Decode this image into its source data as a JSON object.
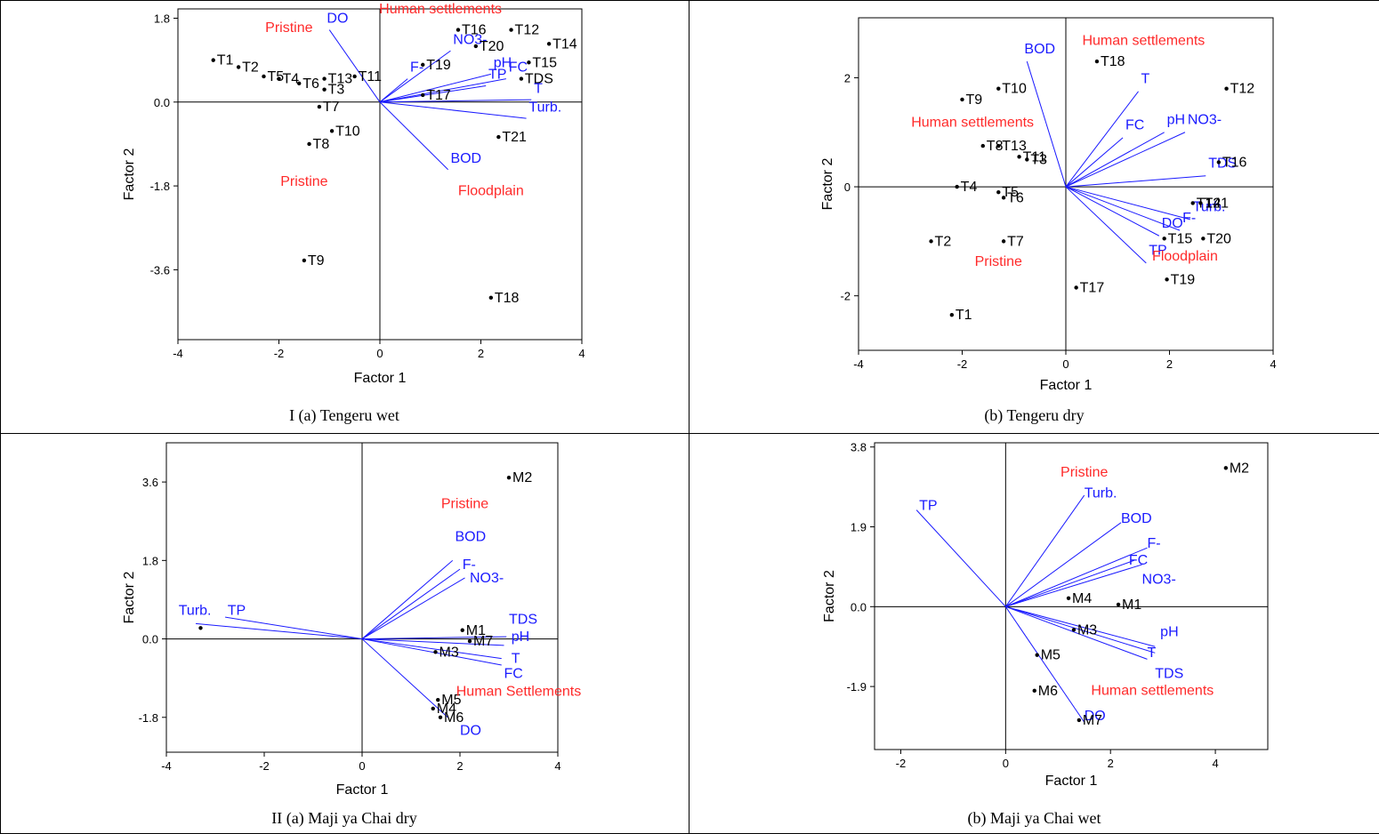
{
  "figure": {
    "captions": [
      "I (a) Tengeru wet",
      "(b) Tengeru dry",
      "II (a) Maji ya Chai dry",
      "(b) Maji ya Chai wet"
    ]
  },
  "colors": {
    "axis": "#000000",
    "vector": "#1a1aff",
    "vector_label": "#1a1aff",
    "group_label": "#ff2a2a",
    "point": "#000000"
  },
  "chart_data": [
    {
      "type": "scatter",
      "title": "",
      "caption": "I (a) Tengeru wet",
      "xlabel": "Factor 1",
      "ylabel": "Factor 2",
      "xlim": [
        -4,
        4
      ],
      "ylim": [
        -5.1,
        2.0
      ],
      "xticks": [
        -4,
        -2,
        0,
        2,
        4
      ],
      "yticks": [
        1.8,
        0.0,
        -1.8,
        -3.6
      ],
      "ytick_labels": [
        "1.8",
        "0.0",
        "-1.8",
        "-3.6"
      ],
      "points": [
        {
          "label": "T1",
          "x": -3.3,
          "y": 0.9
        },
        {
          "label": "T2",
          "x": -2.8,
          "y": 0.75
        },
        {
          "label": "T5",
          "x": -2.3,
          "y": 0.55
        },
        {
          "label": "T4",
          "x": -2.0,
          "y": 0.5
        },
        {
          "label": "T6",
          "x": -1.6,
          "y": 0.4
        },
        {
          "label": "T13",
          "x": -1.1,
          "y": 0.5
        },
        {
          "label": "T3",
          "x": -1.1,
          "y": 0.27
        },
        {
          "label": "T11",
          "x": -0.5,
          "y": 0.55
        },
        {
          "label": "T7",
          "x": -1.2,
          "y": -0.1
        },
        {
          "label": "T10",
          "x": -0.95,
          "y": -0.62
        },
        {
          "label": "T8",
          "x": -1.4,
          "y": -0.9
        },
        {
          "label": "T9",
          "x": -1.5,
          "y": -3.4
        },
        {
          "label": "T16",
          "x": 1.55,
          "y": 1.55
        },
        {
          "label": "T12",
          "x": 2.6,
          "y": 1.55
        },
        {
          "label": "T14",
          "x": 3.35,
          "y": 1.25
        },
        {
          "label": "T20",
          "x": 1.9,
          "y": 1.2
        },
        {
          "label": "T19",
          "x": 0.85,
          "y": 0.8
        },
        {
          "label": "T15",
          "x": 2.95,
          "y": 0.85
        },
        {
          "label": "T17",
          "x": 0.85,
          "y": 0.15
        },
        {
          "label": "TDS",
          "x": 2.8,
          "y": 0.5
        },
        {
          "label": "T21",
          "x": 2.35,
          "y": -0.75
        },
        {
          "label": "T18",
          "x": 2.2,
          "y": -4.2
        }
      ],
      "vectors": [
        {
          "label": "DO",
          "x": -1.0,
          "y": 1.55
        },
        {
          "label": "NO3-",
          "x": 1.4,
          "y": 1.1
        },
        {
          "label": "F-",
          "x": 0.55,
          "y": 0.5
        },
        {
          "label": "pH",
          "x": 2.2,
          "y": 0.6
        },
        {
          "label": "TP",
          "x": 2.1,
          "y": 0.35
        },
        {
          "label": "FC",
          "x": 2.5,
          "y": 0.5
        },
        {
          "label": "T",
          "x": 3.0,
          "y": 0.05
        },
        {
          "label": "Turb.",
          "x": 2.9,
          "y": -0.35
        },
        {
          "label": "BOD",
          "x": 1.35,
          "y": -1.45
        }
      ],
      "group_labels": [
        {
          "text": "Pristine",
          "x": -1.8,
          "y": 1.5
        },
        {
          "text": "Human settlements",
          "x": 1.2,
          "y": 1.9
        },
        {
          "text": "Pristine",
          "x": -1.5,
          "y": -1.8
        },
        {
          "text": "Floodplain",
          "x": 2.2,
          "y": -2.0
        }
      ]
    },
    {
      "type": "scatter",
      "title": "",
      "caption": "(b) Tengeru dry",
      "xlabel": "Factor 1",
      "ylabel": "Factor 2",
      "xlim": [
        -4,
        4
      ],
      "ylim": [
        -3.0,
        3.1
      ],
      "xticks": [
        -4,
        -2,
        0,
        2,
        4
      ],
      "yticks": [
        2,
        0,
        -2
      ],
      "ytick_labels": [
        "2",
        "0",
        "-2"
      ],
      "points": [
        {
          "label": "T9",
          "x": -2.0,
          "y": 1.6
        },
        {
          "label": "T10",
          "x": -1.3,
          "y": 1.8
        },
        {
          "label": "T18",
          "x": 0.6,
          "y": 2.3
        },
        {
          "label": "T12",
          "x": 3.1,
          "y": 1.8
        },
        {
          "label": "T8",
          "x": -1.6,
          "y": 0.75
        },
        {
          "label": "T13",
          "x": -1.3,
          "y": 0.75
        },
        {
          "label": "T11",
          "x": -0.9,
          "y": 0.55
        },
        {
          "label": "T3",
          "x": -0.75,
          "y": 0.5
        },
        {
          "label": "T16",
          "x": 2.95,
          "y": 0.45
        },
        {
          "label": "T4",
          "x": -2.1,
          "y": 0.0
        },
        {
          "label": "T5",
          "x": -1.3,
          "y": -0.1
        },
        {
          "label": "T6",
          "x": -1.2,
          "y": -0.2
        },
        {
          "label": "T14",
          "x": 2.45,
          "y": -0.3
        },
        {
          "label": "T21",
          "x": 2.6,
          "y": -0.3
        },
        {
          "label": "T15",
          "x": 1.9,
          "y": -0.95
        },
        {
          "label": "T20",
          "x": 2.65,
          "y": -0.95
        },
        {
          "label": "T2",
          "x": -2.6,
          "y": -1.0
        },
        {
          "label": "T7",
          "x": -1.2,
          "y": -1.0
        },
        {
          "label": "T19",
          "x": 1.95,
          "y": -1.7
        },
        {
          "label": "T17",
          "x": 0.2,
          "y": -1.85
        },
        {
          "label": "T1",
          "x": -2.2,
          "y": -2.35
        }
      ],
      "vectors": [
        {
          "label": "BOD",
          "x": -0.75,
          "y": 2.3
        },
        {
          "label": "T",
          "x": 1.4,
          "y": 1.75
        },
        {
          "label": "FC",
          "x": 1.1,
          "y": 0.9
        },
        {
          "label": "pH",
          "x": 1.9,
          "y": 1.0
        },
        {
          "label": "NO3-",
          "x": 2.3,
          "y": 1.0
        },
        {
          "label": "TDS",
          "x": 2.7,
          "y": 0.2
        },
        {
          "label": "Turb.",
          "x": 2.4,
          "y": -0.6
        },
        {
          "label": "F-",
          "x": 2.2,
          "y": -0.8
        },
        {
          "label": "DO",
          "x": 1.8,
          "y": -0.9
        },
        {
          "label": "TP",
          "x": 1.55,
          "y": -1.4
        }
      ],
      "group_labels": [
        {
          "text": "Human settlements",
          "x": 1.5,
          "y": 2.6
        },
        {
          "text": "Human settlements",
          "x": -1.8,
          "y": 1.1
        },
        {
          "text": "Pristine",
          "x": -1.3,
          "y": -1.45
        },
        {
          "text": "Floodplain",
          "x": 2.3,
          "y": -1.35
        }
      ]
    },
    {
      "type": "scatter",
      "title": "",
      "caption": "II (a) Maji ya Chai dry",
      "xlabel": "Factor 1",
      "ylabel": "Factor 2",
      "xlim": [
        -4,
        4
      ],
      "ylim": [
        -2.6,
        4.5
      ],
      "xticks": [
        -4,
        -2,
        0,
        2,
        4
      ],
      "yticks": [
        3.6,
        1.8,
        0.0,
        -1.8
      ],
      "ytick_labels": [
        "3.6",
        "1.8",
        "0.0",
        "-1.8"
      ],
      "points": [
        {
          "label": "M2",
          "x": 3.0,
          "y": 3.7
        },
        {
          "label": "",
          "x": -3.3,
          "y": 0.25
        },
        {
          "label": "M1",
          "x": 2.05,
          "y": 0.2
        },
        {
          "label": "M7",
          "x": 2.2,
          "y": -0.05
        },
        {
          "label": "M3",
          "x": 1.5,
          "y": -0.3
        },
        {
          "label": "M5",
          "x": 1.55,
          "y": -1.4
        },
        {
          "label": "M4",
          "x": 1.45,
          "y": -1.6
        },
        {
          "label": "M6",
          "x": 1.6,
          "y": -1.8
        }
      ],
      "vectors": [
        {
          "label": "Turb.",
          "x": -3.4,
          "y": 0.35
        },
        {
          "label": "TP",
          "x": -2.8,
          "y": 0.5
        },
        {
          "label": "BOD",
          "x": 1.85,
          "y": 1.8
        },
        {
          "label": "F-",
          "x": 2.0,
          "y": 1.6
        },
        {
          "label": "NO3-",
          "x": 2.1,
          "y": 1.4
        },
        {
          "label": "TDS",
          "x": 2.95,
          "y": 0.05
        },
        {
          "label": "pH",
          "x": 2.9,
          "y": -0.15
        },
        {
          "label": "T",
          "x": 2.85,
          "y": -0.45
        },
        {
          "label": "FC",
          "x": 2.85,
          "y": -0.6
        },
        {
          "label": "DO",
          "x": 1.75,
          "y": -1.8
        }
      ],
      "group_labels": [
        {
          "text": "Pristine",
          "x": 2.1,
          "y": 3.0
        },
        {
          "text": "Human Settlements",
          "x": 3.2,
          "y": -1.3
        }
      ],
      "vector_label_positions": [
        {
          "label": "Turb.",
          "x": -3.75,
          "y": 0.55
        },
        {
          "label": "TP",
          "x": -2.75,
          "y": 0.55
        },
        {
          "label": "BOD",
          "x": 1.9,
          "y": 2.25
        },
        {
          "label": "F-",
          "x": 2.05,
          "y": 1.6
        },
        {
          "label": "NO3-",
          "x": 2.2,
          "y": 1.3
        },
        {
          "label": "TDS",
          "x": 3.0,
          "y": 0.35
        },
        {
          "label": "pH",
          "x": 3.05,
          "y": -0.05
        },
        {
          "label": "T",
          "x": 3.05,
          "y": -0.55
        },
        {
          "label": "FC",
          "x": 2.9,
          "y": -0.9
        },
        {
          "label": "DO",
          "x": 2.0,
          "y": -2.2
        }
      ]
    },
    {
      "type": "scatter",
      "title": "",
      "caption": "(b) Maji ya Chai wet",
      "xlabel": "Factor 1",
      "ylabel": "Factor 2",
      "xlim": [
        -2.5,
        5
      ],
      "ylim": [
        -3.4,
        3.9
      ],
      "xticks": [
        -2,
        0,
        2,
        4
      ],
      "yticks": [
        3.8,
        1.9,
        0.0,
        -1.9
      ],
      "ytick_labels": [
        "3.8",
        "1.9",
        "0.0",
        "-1.9"
      ],
      "points": [
        {
          "label": "M2",
          "x": 4.2,
          "y": 3.3
        },
        {
          "label": "M4",
          "x": 1.2,
          "y": 0.2
        },
        {
          "label": "M1",
          "x": 2.15,
          "y": 0.05
        },
        {
          "label": "M3",
          "x": 1.3,
          "y": -0.55
        },
        {
          "label": "M5",
          "x": 0.6,
          "y": -1.15
        },
        {
          "label": "M6",
          "x": 0.55,
          "y": -2.0
        },
        {
          "label": "M7",
          "x": 1.4,
          "y": -2.7
        }
      ],
      "vectors": [
        {
          "label": "TP",
          "x": -1.7,
          "y": 2.3
        },
        {
          "label": "Turb.",
          "x": 1.5,
          "y": 2.65
        },
        {
          "label": "BOD",
          "x": 2.2,
          "y": 2.0
        },
        {
          "label": "F-",
          "x": 2.7,
          "y": 1.4
        },
        {
          "label": "FC",
          "x": 2.45,
          "y": 1.1
        },
        {
          "label": "NO3-",
          "x": 2.6,
          "y": 1.0
        },
        {
          "label": "pH",
          "x": 2.85,
          "y": -0.95
        },
        {
          "label": "TDS",
          "x": 2.85,
          "y": -1.1
        },
        {
          "label": "T",
          "x": 2.7,
          "y": -1.25
        },
        {
          "label": "DO",
          "x": 1.5,
          "y": -2.75
        }
      ],
      "group_labels": [
        {
          "text": "Pristine",
          "x": 1.5,
          "y": 3.1
        },
        {
          "text": "Human settlements",
          "x": 2.8,
          "y": -2.1
        }
      ],
      "vector_label_positions": [
        {
          "label": "TP",
          "x": -1.65,
          "y": 2.3
        },
        {
          "label": "Turb.",
          "x": 1.5,
          "y": 2.6
        },
        {
          "label": "BOD",
          "x": 2.2,
          "y": 2.0
        },
        {
          "label": "F-",
          "x": 2.7,
          "y": 1.4
        },
        {
          "label": "FC",
          "x": 2.35,
          "y": 1.0
        },
        {
          "label": "NO3-",
          "x": 2.6,
          "y": 0.55
        },
        {
          "label": "pH",
          "x": 2.95,
          "y": -0.7
        },
        {
          "label": "T",
          "x": 2.7,
          "y": -1.2
        },
        {
          "label": "TDS",
          "x": 2.85,
          "y": -1.7
        },
        {
          "label": "DO",
          "x": 1.5,
          "y": -2.7
        }
      ]
    }
  ]
}
